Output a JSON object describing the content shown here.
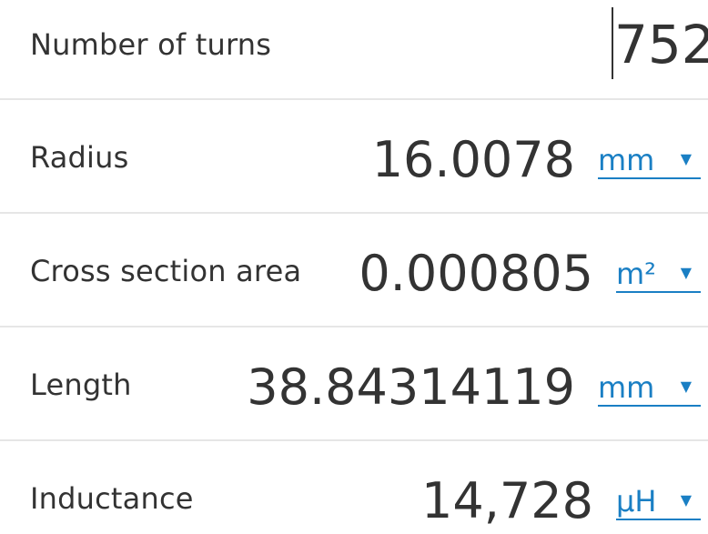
{
  "rows": [
    {
      "label": "Number of turns",
      "value": "752"
    },
    {
      "label": "Radius",
      "value": "16.0078",
      "unit": "mm"
    },
    {
      "label": "Cross section area",
      "value": "0.000805",
      "unit": "m²"
    },
    {
      "label": "Length",
      "value": "38.84314119",
      "unit": "mm"
    },
    {
      "label": "Inductance",
      "value": "14,728",
      "unit": "µH"
    }
  ],
  "caret_glyph": "▼",
  "colors": {
    "text": "#333333",
    "link": "#1a7fc4",
    "divider": "#e6e6e6"
  }
}
